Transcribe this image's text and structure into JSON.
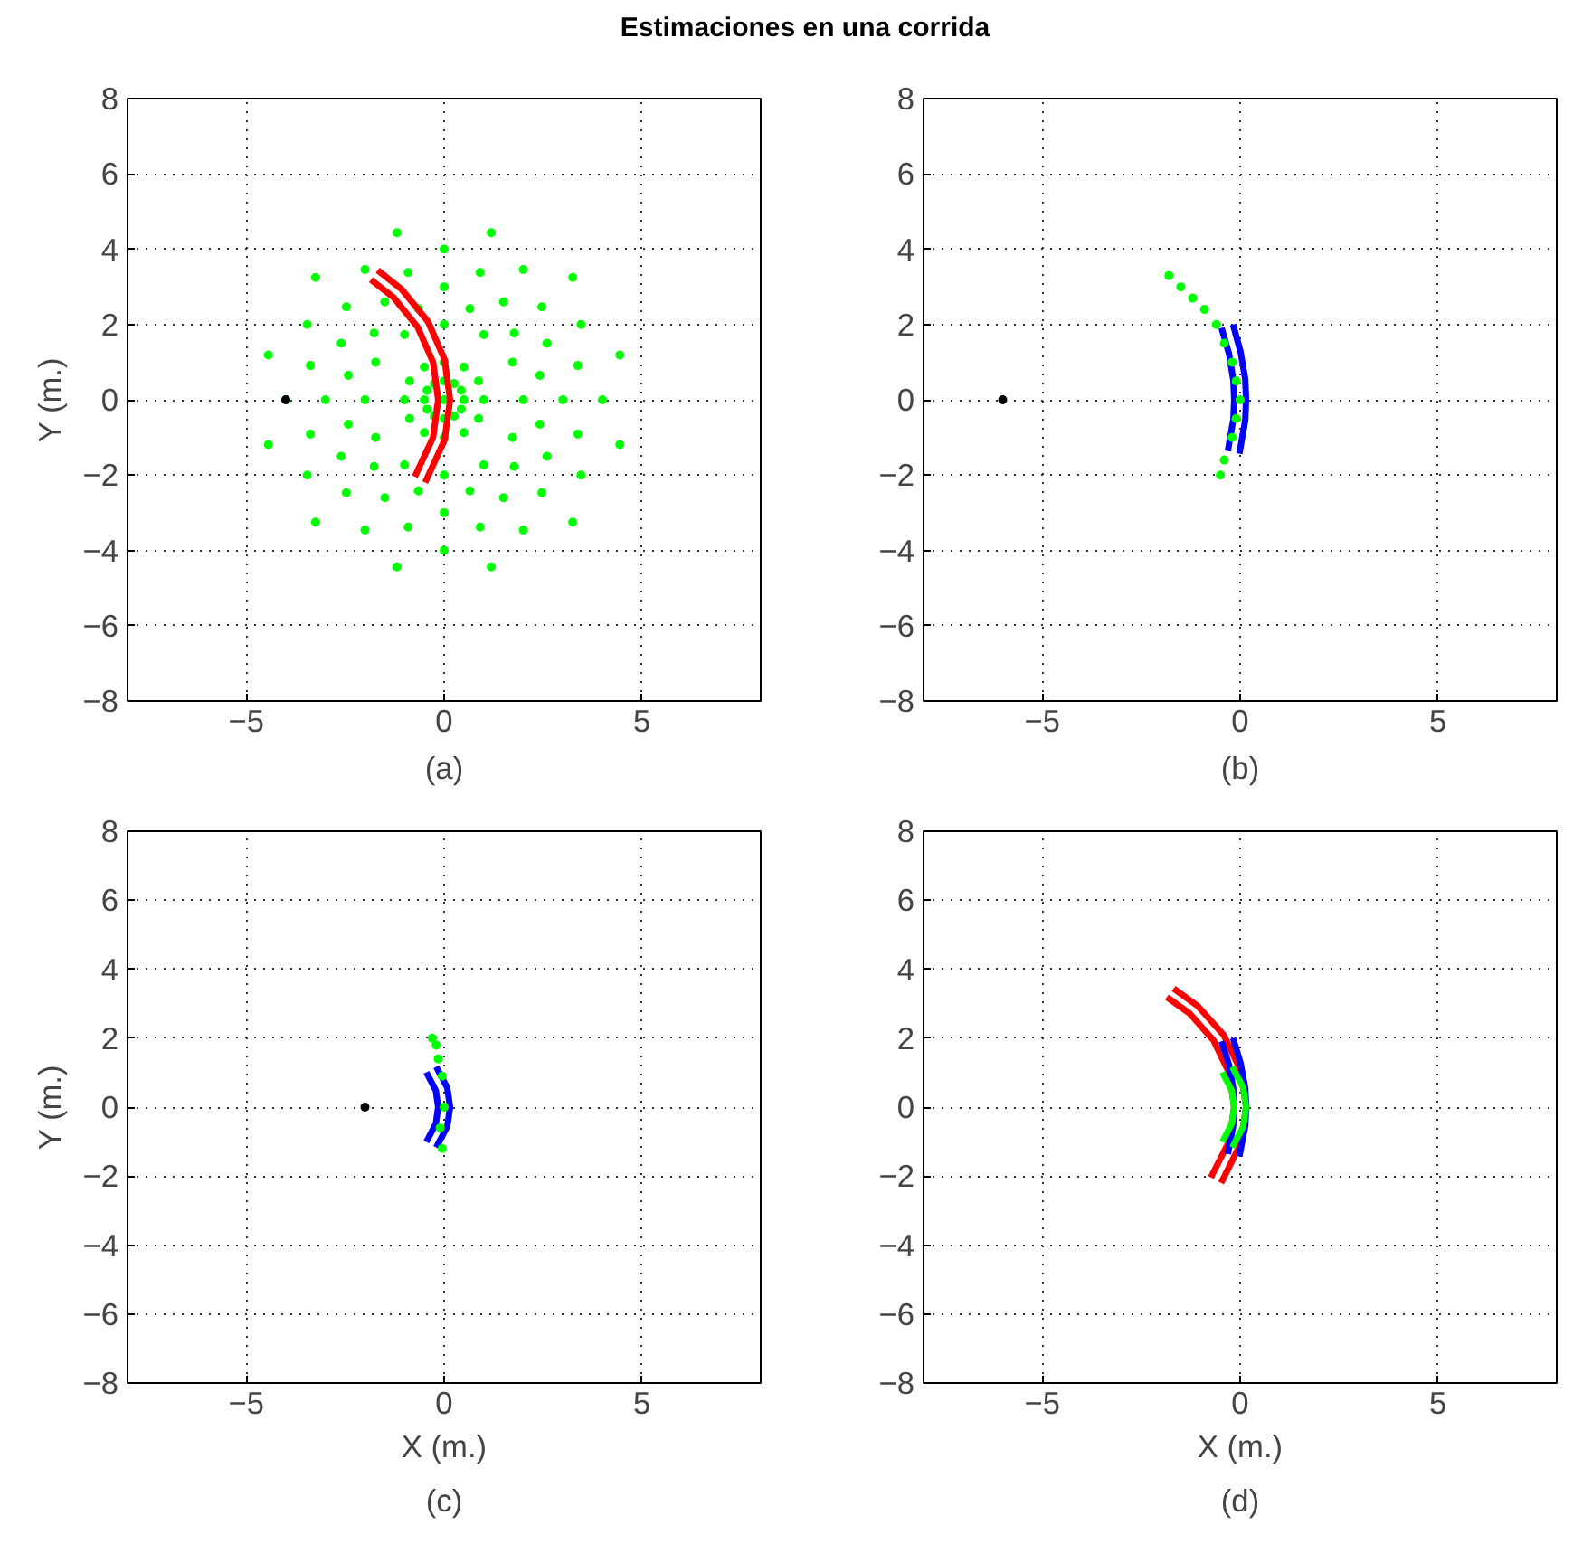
{
  "chart_data": [
    {
      "type": "scatter",
      "title": "Estimaciones en una corrida",
      "ylabel": "Y (m.)",
      "annotations": [
        "(a)"
      ],
      "xlim": [
        -8,
        8
      ],
      "ylim": [
        -8,
        8
      ],
      "xticks": [
        -5,
        0,
        5
      ],
      "yticks": [
        -8,
        -6,
        -4,
        -2,
        0,
        2,
        4,
        6,
        8
      ],
      "grid": true,
      "marker": "circle",
      "series": [
        {
          "color": "#00ff00",
          "x": [
            0,
            0.5,
            0.43,
            0.25,
            0,
            -0.25,
            -0.43,
            -0.5,
            -0.43,
            -0.25,
            0,
            0.25,
            0.43,
            1,
            0.87,
            0.5,
            0,
            -0.5,
            -0.87,
            -1,
            -0.87,
            -0.5,
            0,
            0.5,
            0.87,
            2,
            1.73,
            1,
            0,
            -1,
            -1.73,
            -2,
            -1.73,
            -1,
            0,
            1,
            1.73,
            2.42,
            1.77,
            0.65,
            -0.65,
            -1.77,
            -2.42,
            -2.42,
            -1.77,
            -0.65,
            0.65,
            1.77,
            2.42,
            3,
            2.6,
            1.5,
            0,
            -1.5,
            -2.6,
            -3,
            -2.6,
            -1.5,
            0,
            1.5,
            2.6,
            3.38,
            2.47,
            0.91,
            -0.91,
            -2.47,
            -3.38,
            -3.38,
            -2.47,
            -0.91,
            0.91,
            2.47,
            3.38,
            4,
            3.46,
            2,
            0,
            -2,
            -3.46,
            -4,
            -3.46,
            -2,
            0,
            2,
            3.46,
            4.44,
            3.25,
            1.19,
            -1.19,
            -3.25,
            -4.44,
            -4.44,
            -3.25,
            -1.19,
            1.19,
            3.25,
            4.44
          ],
          "values": [
            0,
            0,
            0.25,
            0.43,
            0.5,
            0.43,
            0.25,
            0,
            -0.25,
            -0.43,
            -0.5,
            -0.43,
            -0.25,
            0,
            0.5,
            0.87,
            1,
            0.87,
            0.5,
            0,
            -0.5,
            -0.87,
            -1,
            -0.87,
            -0.5,
            0,
            1,
            1.73,
            2,
            1.73,
            1,
            0,
            -1,
            -1.73,
            -2,
            -1.73,
            -1,
            0.65,
            1.77,
            2.42,
            2.42,
            1.77,
            0.65,
            -0.65,
            -1.77,
            -2.42,
            -2.42,
            -1.77,
            -0.65,
            0,
            1.5,
            2.6,
            3,
            2.6,
            1.5,
            0,
            -1.5,
            -2.6,
            -3,
            -2.6,
            -1.5,
            0.91,
            2.47,
            3.38,
            3.38,
            2.47,
            0.91,
            -0.91,
            -2.47,
            -3.38,
            -3.38,
            -2.47,
            -0.91,
            0,
            2,
            3.46,
            4,
            3.46,
            2,
            0,
            -2,
            -3.46,
            -4,
            -3.46,
            -2,
            1.19,
            3.25,
            4.44,
            4.44,
            3.25,
            1.19,
            -1.19,
            -3.25,
            -4.44,
            -4.44,
            -3.25,
            -1.19
          ]
        },
        {
          "type": "line",
          "marker": "none",
          "color": "#ff0000",
          "x": [
            -0.48,
            0.01,
            0.15,
            0.01,
            -0.41,
            -1.07,
            -1.68
          ],
          "values": [
            -2.2,
            -1.07,
            0,
            1.07,
            2.08,
            2.93,
            3.44
          ]
        },
        {
          "type": "line",
          "marker": "none",
          "color": "#ff0000",
          "x": [
            -1.85,
            -1.28,
            -0.67,
            -0.28,
            -0.15,
            -0.28,
            -0.74
          ],
          "values": [
            3.19,
            2.72,
            1.93,
            1.0,
            0,
            -1.0,
            -2.04
          ]
        },
        {
          "color": "#000000",
          "x": [
            -4
          ],
          "values": [
            0
          ]
        }
      ]
    },
    {
      "type": "scatter",
      "annotations": [
        "(b)"
      ],
      "xlim": [
        -8,
        8
      ],
      "ylim": [
        -8,
        8
      ],
      "xticks": [
        -5,
        0,
        5
      ],
      "yticks": [
        -8,
        -6,
        -4,
        -2,
        0,
        2,
        4,
        6,
        8
      ],
      "grid": true,
      "marker": "circle",
      "series": [
        {
          "type": "line",
          "marker": "none",
          "color": "#0000ff",
          "x": [
            -0.02,
            0.13,
            0.15,
            0.13,
            0.01,
            -0.18
          ],
          "values": [
            -1.43,
            -0.54,
            0,
            0.54,
            1.28,
            2.0
          ]
        },
        {
          "type": "line",
          "marker": "none",
          "color": "#0000ff",
          "x": [
            -0.47,
            -0.28,
            -0.17,
            -0.15,
            -0.17,
            -0.31
          ],
          "values": [
            1.91,
            1.22,
            0.51,
            0,
            -0.51,
            -1.36
          ]
        },
        {
          "color": "#00ff00",
          "x": [
            -1.8,
            -1.5,
            -1.2,
            -0.9,
            -0.6,
            -0.4,
            -0.2,
            -0.1,
            0,
            -0.1,
            -0.2,
            -0.4,
            -0.5
          ],
          "values": [
            3.3,
            3.0,
            2.7,
            2.4,
            2.0,
            1.5,
            1.0,
            0.5,
            0,
            -0.5,
            -1.0,
            -1.6,
            -2.0
          ]
        },
        {
          "color": "#000000",
          "x": [
            -6
          ],
          "values": [
            0
          ]
        }
      ]
    },
    {
      "type": "scatter",
      "xlabel": "X (m.)",
      "ylabel": "Y (m.)",
      "annotations": [
        "(c)"
      ],
      "xlim": [
        -8,
        8
      ],
      "ylim": [
        -8,
        8
      ],
      "xticks": [
        -5,
        0,
        5
      ],
      "yticks": [
        -8,
        -6,
        -4,
        -2,
        0,
        2,
        4,
        6,
        8
      ],
      "grid": true,
      "marker": "circle",
      "series": [
        {
          "type": "line",
          "marker": "none",
          "color": "#0000ff",
          "x": [
            -0.2,
            0.08,
            0.15,
            0.08,
            -0.2
          ],
          "values": [
            -1.17,
            -0.56,
            0,
            0.56,
            1.17
          ]
        },
        {
          "type": "line",
          "marker": "none",
          "color": "#0000ff",
          "x": [
            -0.45,
            -0.21,
            -0.15,
            -0.21,
            -0.45
          ],
          "values": [
            1.01,
            0.48,
            0,
            -0.48,
            -1.01
          ]
        },
        {
          "color": "#00ff00",
          "x": [
            -0.3,
            -0.2,
            -0.15,
            -0.05,
            0,
            -0.1,
            -0.05
          ],
          "values": [
            2.0,
            1.8,
            1.4,
            0.9,
            0,
            -0.6,
            -1.2
          ]
        },
        {
          "color": "#000000",
          "x": [
            -2
          ],
          "values": [
            0
          ]
        }
      ]
    },
    {
      "type": "line",
      "xlabel": "X (m.)",
      "annotations": [
        "(d)"
      ],
      "xlim": [
        -8,
        8
      ],
      "ylim": [
        -8,
        8
      ],
      "xticks": [
        -5,
        0,
        5
      ],
      "yticks": [
        -8,
        -6,
        -4,
        -2,
        0,
        2,
        4,
        6,
        8
      ],
      "grid": true,
      "marker": "none",
      "series": [
        {
          "color": "#ff0000",
          "x": [
            -0.48,
            0.01,
            0.15,
            0.01,
            -0.41,
            -1.07,
            -1.68
          ],
          "values": [
            -2.2,
            -1.07,
            0,
            1.07,
            2.08,
            2.93,
            3.44
          ]
        },
        {
          "color": "#ff0000",
          "x": [
            -1.85,
            -1.28,
            -0.67,
            -0.28,
            -0.15,
            -0.28,
            -0.74
          ],
          "values": [
            3.19,
            2.72,
            1.93,
            1.0,
            0,
            -1.0,
            -2.04
          ]
        },
        {
          "color": "#0000ff",
          "x": [
            -0.02,
            0.13,
            0.15,
            0.13,
            0.01,
            -0.18
          ],
          "values": [
            -1.43,
            -0.54,
            0,
            0.54,
            1.28,
            2.0
          ]
        },
        {
          "color": "#0000ff",
          "x": [
            -0.47,
            -0.28,
            -0.17,
            -0.15,
            -0.17,
            -0.31
          ],
          "values": [
            1.91,
            1.22,
            0.51,
            0,
            -0.51,
            -1.36
          ]
        },
        {
          "color": "#00ff00",
          "x": [
            -0.2,
            0.08,
            0.15,
            0.08,
            -0.2
          ],
          "values": [
            -1.17,
            -0.56,
            0,
            0.56,
            1.17
          ]
        },
        {
          "color": "#00ff00",
          "x": [
            -0.45,
            -0.21,
            -0.15,
            -0.21,
            -0.45
          ],
          "values": [
            1.01,
            0.48,
            0,
            -0.48,
            -1.01
          ]
        }
      ]
    }
  ]
}
